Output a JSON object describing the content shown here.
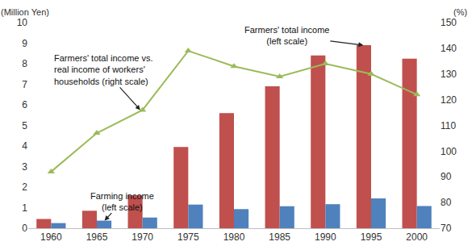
{
  "chart_data": {
    "type": "bar",
    "categories": [
      "1960",
      "1965",
      "1970",
      "1975",
      "1980",
      "1985",
      "1990",
      "1995",
      "2000"
    ],
    "ylabel": "(Million Yen)",
    "y2label": "(%)",
    "ylim": [
      0,
      10
    ],
    "yticks": [
      0,
      1,
      2,
      3,
      4,
      5,
      6,
      7,
      8,
      9,
      10
    ],
    "y2lim": [
      70,
      150
    ],
    "y2ticks": [
      70,
      80,
      90,
      100,
      110,
      120,
      130,
      140,
      150
    ],
    "grid": false,
    "legend": "none",
    "series": [
      {
        "name": "Farmers' total income\n(left scale)",
        "type": "bar",
        "color": "#C0504D",
        "values": [
          0.45,
          0.85,
          1.6,
          3.95,
          5.6,
          6.9,
          8.4,
          8.9,
          8.25
        ]
      },
      {
        "name": "Farming income\n(left scale)",
        "type": "bar",
        "color": "#4F81BD",
        "values": [
          0.25,
          0.37,
          0.52,
          1.15,
          0.93,
          1.07,
          1.17,
          1.45,
          1.08
        ]
      },
      {
        "name": "Farmers' total income vs.\nreal income of workers'\nhouseholds (right scale)",
        "type": "line",
        "axis": "y2",
        "color": "#9BBB59",
        "marker": "triangle-up",
        "values": [
          92,
          107,
          116,
          139,
          133,
          129,
          134,
          130,
          122
        ]
      }
    ]
  }
}
